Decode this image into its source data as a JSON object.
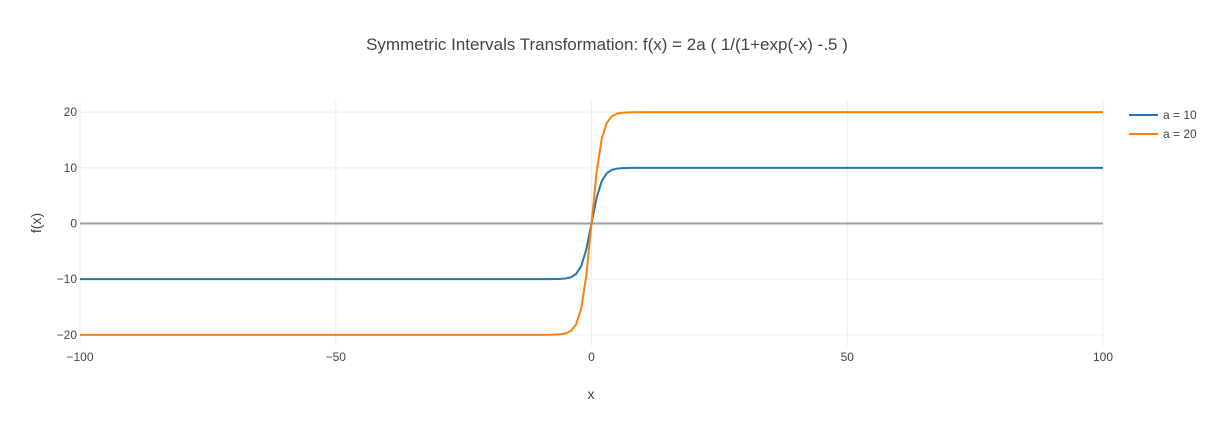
{
  "chart_data": {
    "type": "line",
    "title": "Symmetric Intervals Transformation: f(x) = 2a ( 1/(1+exp(-x) -.5 )",
    "xlabel": "x",
    "ylabel": "f(x)",
    "xlim": [
      -100,
      100
    ],
    "ylim": [
      -22,
      22
    ],
    "xticks": [
      -100,
      -50,
      0,
      50,
      100
    ],
    "xtick_labels": [
      "−100",
      "−50",
      "0",
      "50",
      "100"
    ],
    "yticks": [
      -20,
      -10,
      0,
      10,
      20
    ],
    "ytick_labels": [
      "−20",
      "−10",
      "0",
      "10",
      "20"
    ],
    "grid": true,
    "legend": "top-right",
    "zero_line_color": "#9e9e9e",
    "series": [
      {
        "name": "a = 10",
        "color": "#1f77b4",
        "x": [
          -100,
          -50,
          -20,
          -10,
          -8,
          -6,
          -5,
          -4,
          -3,
          -2,
          -1,
          0,
          1,
          2,
          3,
          4,
          5,
          6,
          8,
          10,
          20,
          50,
          100
        ],
        "y": [
          -10,
          -10,
          -10,
          -9.999,
          -9.993,
          -9.951,
          -9.866,
          -9.64,
          -9.051,
          -7.616,
          -4.621,
          0,
          4.621,
          7.616,
          9.051,
          9.64,
          9.866,
          9.951,
          9.993,
          9.999,
          10,
          10,
          10
        ]
      },
      {
        "name": "a = 20",
        "color": "#ff7f0e",
        "x": [
          -100,
          -50,
          -20,
          -10,
          -8,
          -6,
          -5,
          -4,
          -3,
          -2,
          -1,
          0,
          1,
          2,
          3,
          4,
          5,
          6,
          8,
          10,
          20,
          50,
          100
        ],
        "y": [
          -20,
          -20,
          -20,
          -19.998,
          -19.987,
          -19.901,
          -19.732,
          -19.281,
          -18.103,
          -15.232,
          -9.242,
          0,
          9.242,
          15.232,
          18.103,
          19.281,
          19.732,
          19.901,
          19.987,
          19.998,
          20,
          20,
          20
        ]
      }
    ]
  }
}
